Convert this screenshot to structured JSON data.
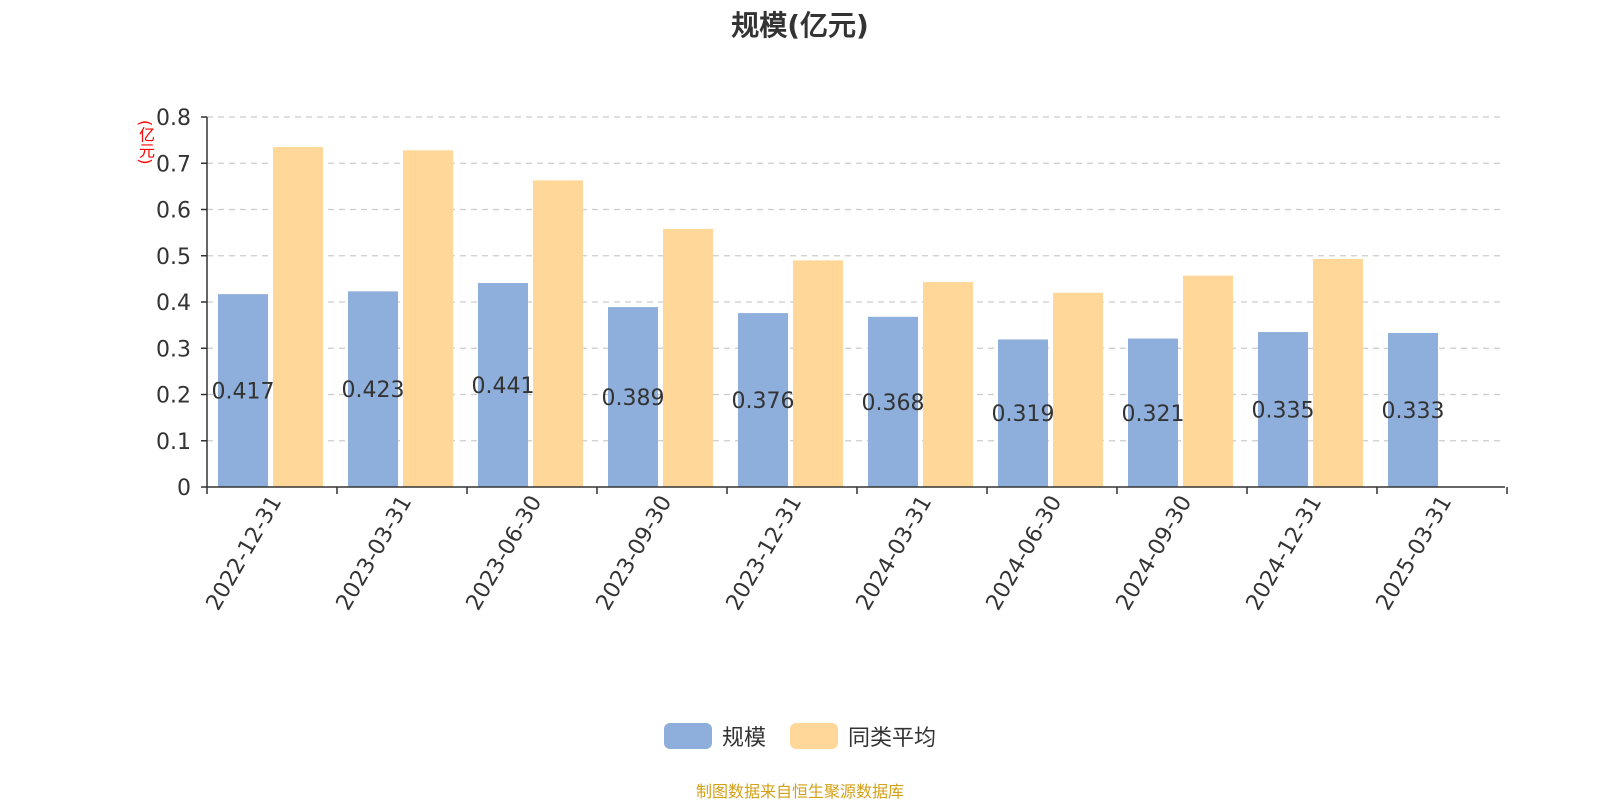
{
  "chart_data": {
    "type": "bar",
    "title": "规模(亿元)",
    "ylabel": "(亿元)",
    "ylim": [
      0,
      0.8
    ],
    "yticks": [
      "0",
      "0.1",
      "0.2",
      "0.3",
      "0.4",
      "0.5",
      "0.6",
      "0.7",
      "0.8"
    ],
    "grid": true,
    "legend_position": "bottom",
    "categories": [
      "2022-12-31",
      "2023-03-31",
      "2023-06-30",
      "2023-09-30",
      "2023-12-31",
      "2024-03-31",
      "2024-06-30",
      "2024-09-30",
      "2024-12-31",
      "2025-03-31"
    ],
    "series": [
      {
        "name": "规模",
        "color": "#8eaedb",
        "values": [
          0.417,
          0.423,
          0.441,
          0.389,
          0.376,
          0.368,
          0.319,
          0.321,
          0.335,
          0.333
        ],
        "labels": [
          "0.417",
          "0.423",
          "0.441",
          "0.389",
          "0.376",
          "0.368",
          "0.319",
          "0.321",
          "0.335",
          "0.333"
        ]
      },
      {
        "name": "同类平均",
        "color": "#ffd899",
        "values": [
          0.735,
          0.728,
          0.663,
          0.558,
          0.49,
          0.443,
          0.42,
          0.457,
          0.493,
          null
        ]
      }
    ]
  },
  "source": "制图数据来自恒生聚源数据库"
}
